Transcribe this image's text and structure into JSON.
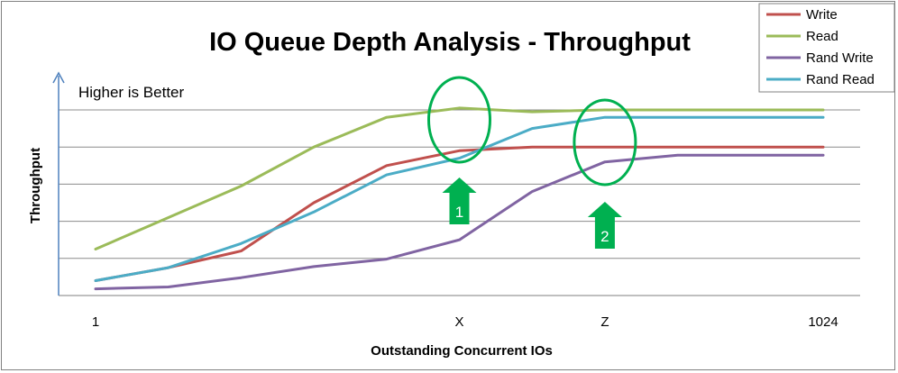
{
  "chart_data": {
    "type": "line",
    "title": "IO Queue Depth Analysis - Throughput",
    "xlabel": "Outstanding Concurrent IOs",
    "ylabel": "Throughput",
    "annotation": "Higher is Better",
    "x_tick_labels": [
      {
        "label": "1",
        "x": 0
      },
      {
        "label": "X",
        "x": 5
      },
      {
        "label": "Z",
        "x": 7
      },
      {
        "label": "1024",
        "x": 10
      }
    ],
    "x": [
      0,
      1,
      2,
      3,
      4,
      5,
      6,
      7,
      8,
      9,
      10
    ],
    "ylim": [
      0,
      5
    ],
    "grid": true,
    "legend_position": "top-right",
    "series": [
      {
        "name": "Write",
        "color": "#c0504d",
        "values": [
          0.4,
          0.75,
          1.2,
          2.5,
          3.5,
          3.9,
          4.0,
          4.0,
          4.0,
          4.0,
          4.0
        ]
      },
      {
        "name": "Read",
        "color": "#9bbb59",
        "values": [
          1.25,
          2.1,
          2.95,
          4.0,
          4.8,
          5.05,
          4.95,
          5.0,
          5.0,
          5.0,
          5.0
        ]
      },
      {
        "name": "Rand Write",
        "color": "#8064a2",
        "values": [
          0.18,
          0.23,
          0.48,
          0.78,
          0.98,
          1.5,
          2.8,
          3.6,
          3.78,
          3.78,
          3.78
        ]
      },
      {
        "name": "Rand Read",
        "color": "#4bacc6",
        "values": [
          0.4,
          0.75,
          1.4,
          2.25,
          3.25,
          3.7,
          4.5,
          4.8,
          4.8,
          4.8,
          4.8
        ]
      }
    ],
    "markers": [
      {
        "label": "1",
        "x": 5
      },
      {
        "label": "2",
        "x": 7
      }
    ]
  }
}
